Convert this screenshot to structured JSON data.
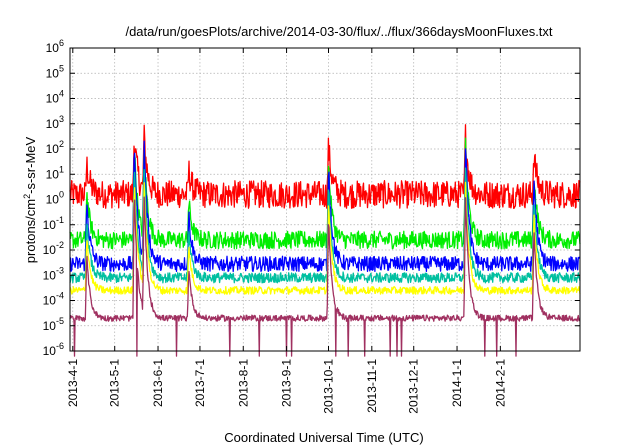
{
  "chart_data": {
    "type": "line",
    "title": "/data/run/goesPlots/archive/2014-03-30/flux/../flux/366daysMoonFluxes.txt",
    "xlabel": "Coordinated Universal Time (UTC)",
    "ylabel": {
      "prefix": "protons/cm",
      "sup": "2",
      "suffix": "-s-sr-MeV"
    },
    "scale": "log",
    "grid": true,
    "x_range": [
      "2013-03-30",
      "2014-03-30"
    ],
    "x_ticks": [
      "2013-4-1",
      "2013-5-1",
      "2013-6-1",
      "2013-7-1",
      "2013-8-1",
      "2013-9-1",
      "2013-10-1",
      "2013-11-1",
      "2013-12-1",
      "2014-1-1",
      "2014-2-1"
    ],
    "y_ticks": [
      {
        "base": "10",
        "exp": "-6"
      },
      {
        "base": "10",
        "exp": "-5"
      },
      {
        "base": "10",
        "exp": "-4"
      },
      {
        "base": "10",
        "exp": "-3"
      },
      {
        "base": "10",
        "exp": "-2"
      },
      {
        "base": "10",
        "exp": "-1"
      },
      {
        "base": "10",
        "exp": "0"
      },
      {
        "base": "10",
        "exp": "1"
      },
      {
        "base": "10",
        "exp": "2"
      },
      {
        "base": "10",
        "exp": "3"
      },
      {
        "base": "10",
        "exp": "4"
      },
      {
        "base": "10",
        "exp": "5"
      },
      {
        "base": "10",
        "exp": "6"
      }
    ],
    "ylim_exp": [
      -6,
      6
    ],
    "events": [
      {
        "date": "2013-04-11",
        "level": 0.5
      },
      {
        "date": "2013-05-15",
        "level": 1.0
      },
      {
        "date": "2013-05-22",
        "level": 1.0
      },
      {
        "date": "2013-06-23",
        "level": 0.4
      },
      {
        "date": "2013-10-01",
        "level": 0.8
      },
      {
        "date": "2014-01-07",
        "level": 1.0
      },
      {
        "date": "2014-02-25",
        "level": 0.7
      }
    ],
    "series": [
      {
        "color": "#ff0000",
        "base_log": 0.2,
        "noise": 0.55,
        "peak_log": 2.6
      },
      {
        "color": "#00ee00",
        "base_log": -1.6,
        "noise": 0.35,
        "peak_log": 2.2
      },
      {
        "color": "#0000ff",
        "base_log": -2.55,
        "noise": 0.3,
        "peak_log": 2.4
      },
      {
        "color": "#00c0a0",
        "base_log": -3.1,
        "noise": 0.2,
        "peak_log": 1.5
      },
      {
        "color": "#ffff00",
        "base_log": -3.6,
        "noise": 0.15,
        "peak_log": 0.8
      },
      {
        "color": "#a03060",
        "base_log": -4.7,
        "noise": 0.12,
        "peak_log": 0.3
      }
    ]
  }
}
